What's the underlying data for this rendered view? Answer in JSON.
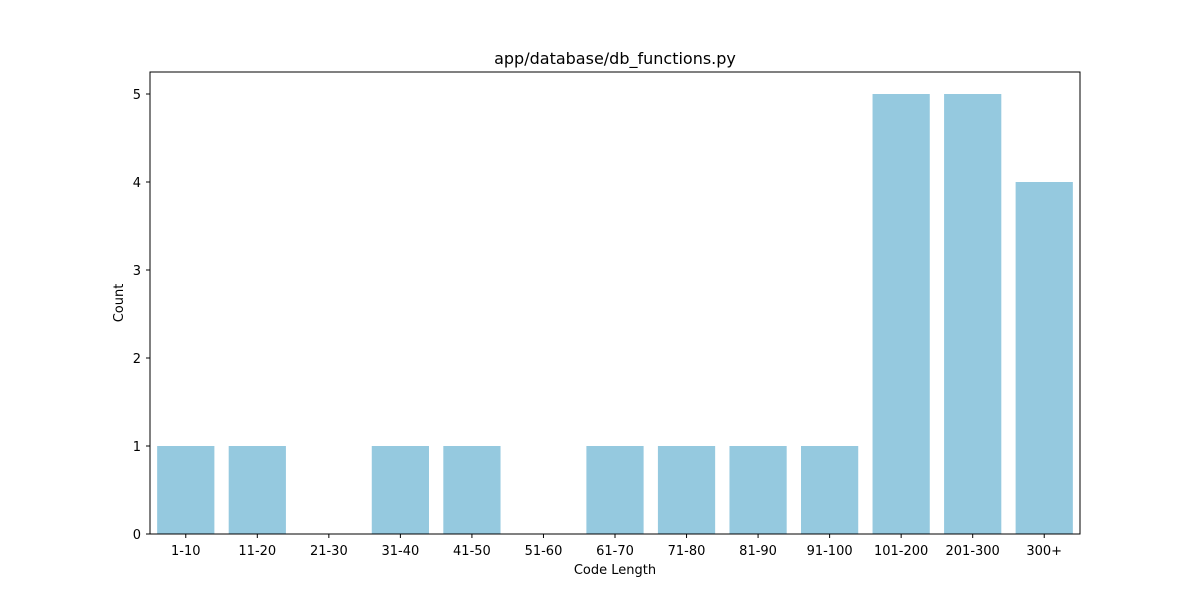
{
  "chart_data": {
    "type": "bar",
    "title": "app/database/db_functions.py",
    "xlabel": "Code Length",
    "ylabel": "Count",
    "categories": [
      "1-10",
      "11-20",
      "21-30",
      "31-40",
      "41-50",
      "51-60",
      "61-70",
      "71-80",
      "81-90",
      "91-100",
      "101-200",
      "201-300",
      "300+"
    ],
    "values": [
      1,
      1,
      0,
      1,
      1,
      0,
      1,
      1,
      1,
      1,
      5,
      5,
      4
    ],
    "yticks": [
      0,
      1,
      2,
      3,
      4,
      5
    ],
    "ylim": [
      0,
      5.25
    ],
    "bar_color": "#95c9df",
    "grid": false,
    "legend": "none"
  }
}
